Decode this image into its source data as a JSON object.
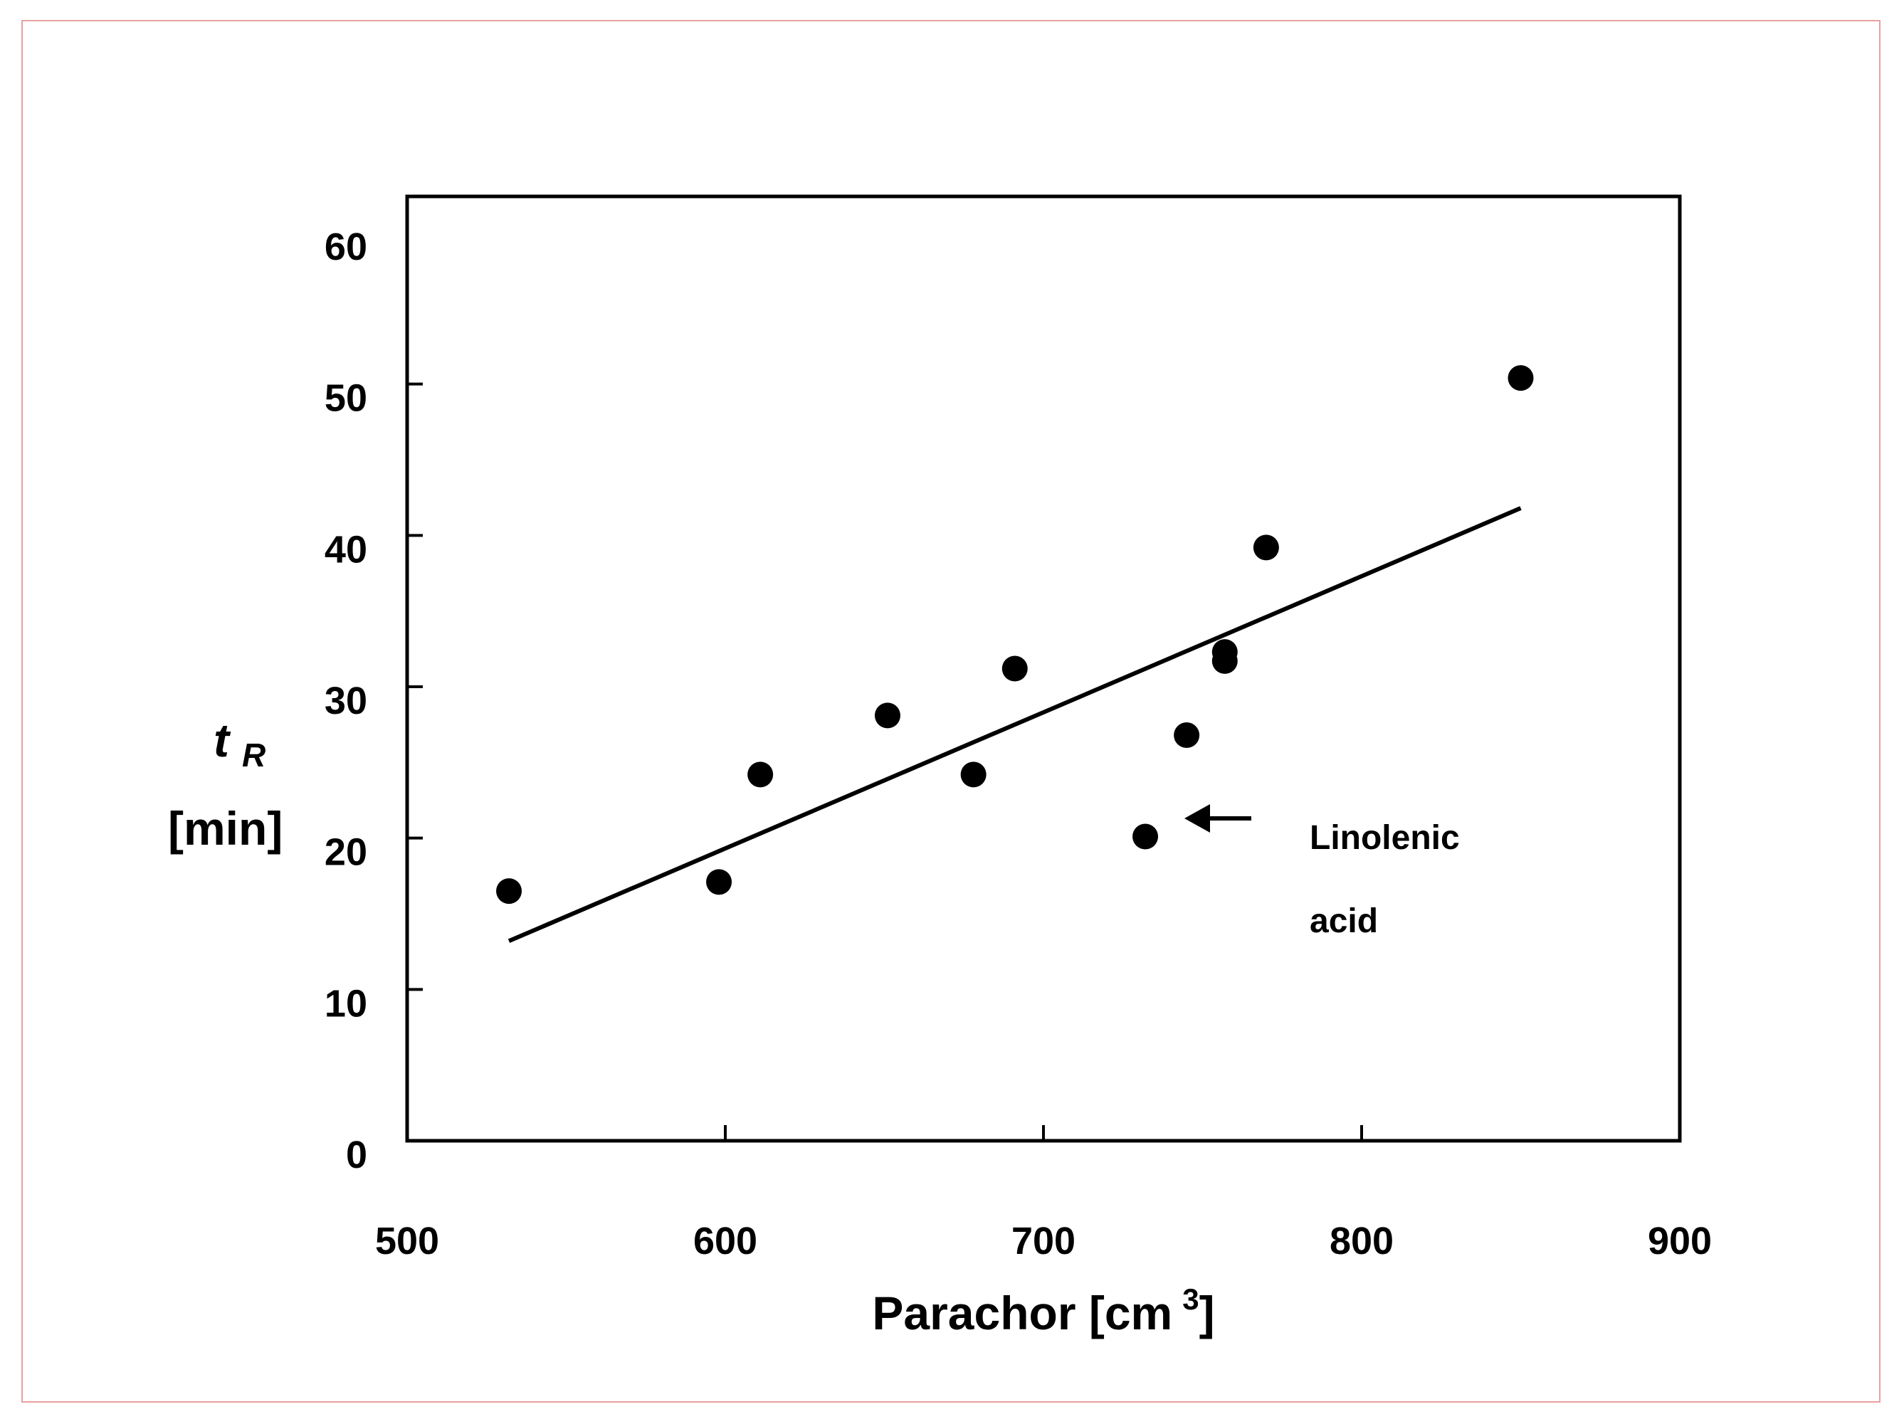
{
  "chart_data": {
    "type": "scatter",
    "xlabel": "Parachor [cm",
    "xlabel_sup": "3",
    "xlabel_end": "]",
    "ylabel_main": "t",
    "ylabel_sub": "R",
    "ylabel_unit": "[min]",
    "xlim": [
      500,
      900
    ],
    "ylim": [
      0,
      60
    ],
    "x_ticks": [
      500,
      600,
      700,
      800,
      900
    ],
    "y_ticks": [
      0,
      10,
      20,
      30,
      40,
      50,
      60
    ],
    "grid": false,
    "series": [
      {
        "points": [
          {
            "x": 532,
            "y": 16.5
          },
          {
            "x": 598,
            "y": 17.1
          },
          {
            "x": 611,
            "y": 24.2
          },
          {
            "x": 651,
            "y": 28.1
          },
          {
            "x": 678,
            "y": 24.2
          },
          {
            "x": 691,
            "y": 31.2
          },
          {
            "x": 732,
            "y": 20.1
          },
          {
            "x": 745,
            "y": 26.8
          },
          {
            "x": 757,
            "y": 31.7
          },
          {
            "x": 757,
            "y": 32.3
          },
          {
            "x": 770,
            "y": 39.2
          },
          {
            "x": 850,
            "y": 50.4
          }
        ]
      }
    ],
    "trendline": {
      "x": [
        532,
        850
      ],
      "y": [
        13.2,
        41.8
      ]
    },
    "annotation": {
      "text_line1": "Linolenic",
      "text_line2": "acid",
      "points_to": {
        "x": 732,
        "y": 20.1
      }
    },
    "colors": {
      "marks": "#000000",
      "frame_border": "#e8a0a0"
    }
  }
}
